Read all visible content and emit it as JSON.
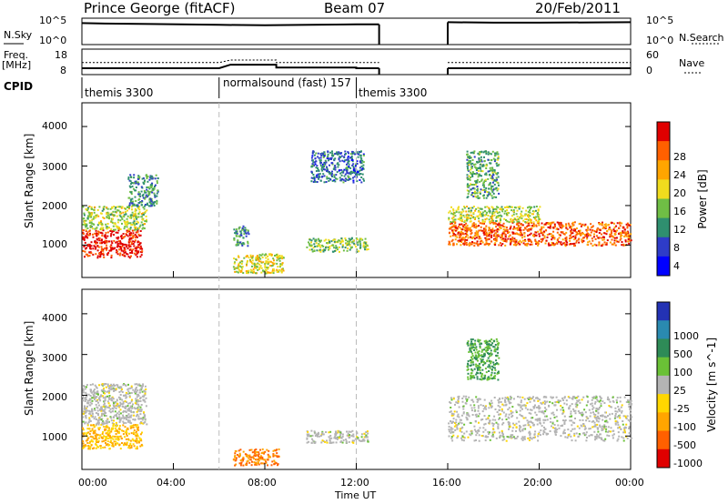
{
  "header": {
    "station": "Prince George (fitACF)",
    "beam": "Beam 07",
    "date": "20/Feb/2011"
  },
  "noise_panel": {
    "left_label": "N.Sky",
    "right_label": "N.Search",
    "left_ticks": [
      "10^5",
      "10^0"
    ],
    "right_ticks": [
      "10^5",
      "10^0"
    ]
  },
  "freq_panel": {
    "left_label_1": "Freq.",
    "left_label_2": "[MHz]",
    "right_label": "Nave",
    "left_ticks": [
      "18",
      "8"
    ],
    "right_ticks": [
      "60",
      "0"
    ]
  },
  "cpid": {
    "label": "CPID",
    "segments": [
      {
        "text": "themis 3300",
        "start": 0,
        "end": 6
      },
      {
        "text": "normalsound (fast) 157",
        "start": 6,
        "end": 12
      },
      {
        "text": "themis 3300",
        "start": 12,
        "end": 24
      }
    ]
  },
  "x_axis": {
    "ticks": [
      "00:00",
      "04:00",
      "08:00",
      "12:00",
      "16:00",
      "20:00",
      "00:00"
    ],
    "tick_hours": [
      0,
      4,
      8,
      12,
      16,
      20,
      24
    ],
    "label": "Time UT",
    "range": [
      0,
      24
    ]
  },
  "power_panel": {
    "ylabel": "Slant Range [km]",
    "y_ticks": [
      "1000",
      "2000",
      "3000",
      "4000"
    ],
    "y_values": [
      1000,
      2000,
      3000,
      4000
    ],
    "ylim": [
      180,
      4600
    ],
    "colorbar_label": "Power [dB]",
    "colorbar_ticks": [
      "4",
      "8",
      "12",
      "16",
      "20",
      "24",
      "28"
    ],
    "colorbar_colors": [
      "#0000ff",
      "#2e3cc8",
      "#2f8f6f",
      "#6fbe45",
      "#f0dc1e",
      "#ffa500",
      "#ff6000",
      "#e00000"
    ]
  },
  "velocity_panel": {
    "ylabel": "Slant Range [km]",
    "y_ticks": [
      "1000",
      "2000",
      "3000",
      "4000"
    ],
    "y_values": [
      1000,
      2000,
      3000,
      4000
    ],
    "ylim": [
      180,
      4600
    ],
    "colorbar_label": "Velocity [m s^-1]",
    "colorbar_ticks": [
      "1000",
      "500",
      "100",
      "25",
      "-25",
      "-100",
      "-500",
      "-1000"
    ],
    "colorbar_colors": [
      "#2332b4",
      "#2a8ab0",
      "#2e8b57",
      "#6ac136",
      "#b4b4b4",
      "#ffd700",
      "#ffa500",
      "#ff6000",
      "#e00000"
    ]
  },
  "chart_data": {
    "type": "heatmap",
    "x_range_hours": [
      0,
      24
    ],
    "data_gap_hours": [
      13,
      16
    ],
    "mode_boundaries_hours": [
      6,
      12
    ],
    "noise_sky_log": [
      [
        0,
        4.5
      ],
      [
        1,
        4.4
      ],
      [
        3,
        4.3
      ],
      [
        6,
        4.1
      ],
      [
        8,
        4.0
      ],
      [
        10,
        4.1
      ],
      [
        12,
        4.2
      ],
      [
        13,
        4.2
      ],
      [
        16,
        4.7
      ],
      [
        18,
        4.6
      ],
      [
        20,
        4.6
      ],
      [
        24,
        4.7
      ]
    ],
    "freq_mhz": [
      [
        0,
        10.1
      ],
      [
        6,
        10.1
      ],
      [
        6.5,
        11.7
      ],
      [
        8.5,
        11.7
      ],
      [
        8.5,
        10.4
      ],
      [
        12,
        10.4
      ],
      [
        12,
        10.1
      ],
      [
        13,
        10.1
      ],
      [
        16,
        10.1
      ],
      [
        24,
        10.1
      ]
    ],
    "nave": [
      [
        0,
        28
      ],
      [
        6,
        28
      ],
      [
        6.5,
        35
      ],
      [
        8.5,
        35
      ],
      [
        8.5,
        28
      ],
      [
        13,
        28
      ],
      [
        16,
        28
      ],
      [
        24,
        28
      ]
    ],
    "power_blobs": [
      {
        "t0": 0.0,
        "t1": 2.6,
        "r0": 700,
        "r1": 1400,
        "value_db": 28
      },
      {
        "t0": 0.0,
        "t1": 2.8,
        "r0": 1400,
        "r1": 2000,
        "value_db": 14
      },
      {
        "t0": 2.0,
        "t1": 3.3,
        "r0": 2000,
        "r1": 2800,
        "value_db": 8
      },
      {
        "t0": 6.6,
        "t1": 8.8,
        "r0": 300,
        "r1": 800,
        "value_db": 16
      },
      {
        "t0": 6.6,
        "t1": 7.3,
        "r0": 1000,
        "r1": 1500,
        "value_db": 8
      },
      {
        "t0": 9.8,
        "t1": 12.5,
        "r0": 850,
        "r1": 1200,
        "value_db": 12
      },
      {
        "t0": 10.0,
        "t1": 12.3,
        "r0": 2600,
        "r1": 3400,
        "value_db": 6
      },
      {
        "t0": 16.0,
        "t1": 24.0,
        "r0": 1000,
        "r1": 1600,
        "value_db": 24
      },
      {
        "t0": 16.0,
        "t1": 20.0,
        "r0": 1600,
        "r1": 2000,
        "value_db": 14
      },
      {
        "t0": 16.8,
        "t1": 18.2,
        "r0": 2200,
        "r1": 3400,
        "value_db": 10
      }
    ],
    "velocity_blobs": [
      {
        "t0": 0.0,
        "t1": 2.6,
        "r0": 700,
        "r1": 1300,
        "value_ms": -100
      },
      {
        "t0": 0.0,
        "t1": 2.8,
        "r0": 1300,
        "r1": 2300,
        "value_ms": 0
      },
      {
        "t0": 6.6,
        "t1": 8.6,
        "r0": 300,
        "r1": 700,
        "value_ms": -500
      },
      {
        "t0": 9.8,
        "t1": 12.5,
        "r0": 850,
        "r1": 1150,
        "value_ms": 0
      },
      {
        "t0": 16.0,
        "t1": 24.0,
        "r0": 900,
        "r1": 2000,
        "value_ms": 0
      },
      {
        "t0": 16.8,
        "t1": 18.2,
        "r0": 2400,
        "r1": 3400,
        "value_ms": 100
      }
    ]
  }
}
